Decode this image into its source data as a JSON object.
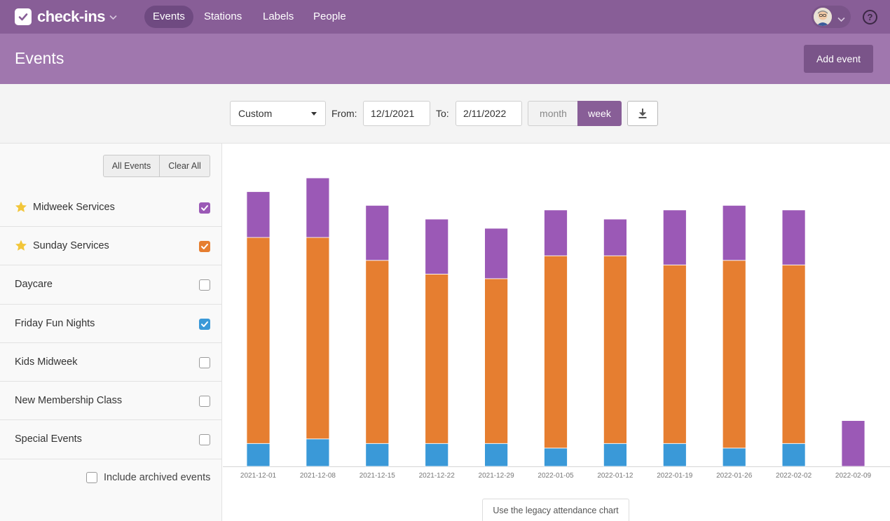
{
  "app": {
    "name": "check-ins",
    "nav": [
      {
        "label": "Events",
        "active": true
      },
      {
        "label": "Stations",
        "active": false
      },
      {
        "label": "Labels",
        "active": false
      },
      {
        "label": "People",
        "active": false
      }
    ],
    "help_label": "?"
  },
  "header": {
    "title": "Events",
    "add_event_label": "Add event"
  },
  "filters": {
    "range_select": "Custom",
    "from_label": "From:",
    "from_value": "12/1/2021",
    "to_label": "To:",
    "to_value": "2/11/2022",
    "grouping": {
      "month": "month",
      "week": "week",
      "selected": "week"
    }
  },
  "sidebar": {
    "all_events_label": "All Events",
    "clear_all_label": "Clear All",
    "events": [
      {
        "name": "Midweek Services",
        "starred": true,
        "checked": true,
        "color": "#9b59b6"
      },
      {
        "name": "Sunday Services",
        "starred": true,
        "checked": true,
        "color": "#e67e30"
      },
      {
        "name": "Daycare",
        "starred": false,
        "checked": false,
        "color": ""
      },
      {
        "name": "Friday Fun Nights",
        "starred": false,
        "checked": true,
        "color": "#3a99d8"
      },
      {
        "name": "Kids Midweek",
        "starred": false,
        "checked": false,
        "color": ""
      },
      {
        "name": "New Membership Class",
        "starred": false,
        "checked": false,
        "color": ""
      },
      {
        "name": "Special Events",
        "starred": false,
        "checked": false,
        "color": ""
      }
    ],
    "include_archived_label": "Include archived events"
  },
  "legacy_chart_label": "Use the legacy attendance chart",
  "chart_data": {
    "type": "bar",
    "stacked": true,
    "categories": [
      "2021-12-01",
      "2021-12-08",
      "2021-12-15",
      "2021-12-22",
      "2021-12-29",
      "2022-01-05",
      "2022-01-12",
      "2022-01-19",
      "2022-01-26",
      "2022-02-02",
      "2022-02-09"
    ],
    "series": [
      {
        "name": "Friday Fun Nights",
        "color": "#3a99d8",
        "values": [
          10,
          12,
          10,
          10,
          10,
          8,
          10,
          10,
          8,
          10,
          0
        ]
      },
      {
        "name": "Sunday Services",
        "color": "#e67e30",
        "values": [
          90,
          88,
          80,
          74,
          72,
          84,
          82,
          78,
          82,
          78,
          0
        ]
      },
      {
        "name": "Midweek Services",
        "color": "#9b59b6",
        "values": [
          20,
          26,
          24,
          24,
          22,
          20,
          16,
          24,
          24,
          24,
          20
        ]
      }
    ],
    "ylim": [
      0,
      130
    ],
    "grid": false,
    "legend": "none"
  }
}
